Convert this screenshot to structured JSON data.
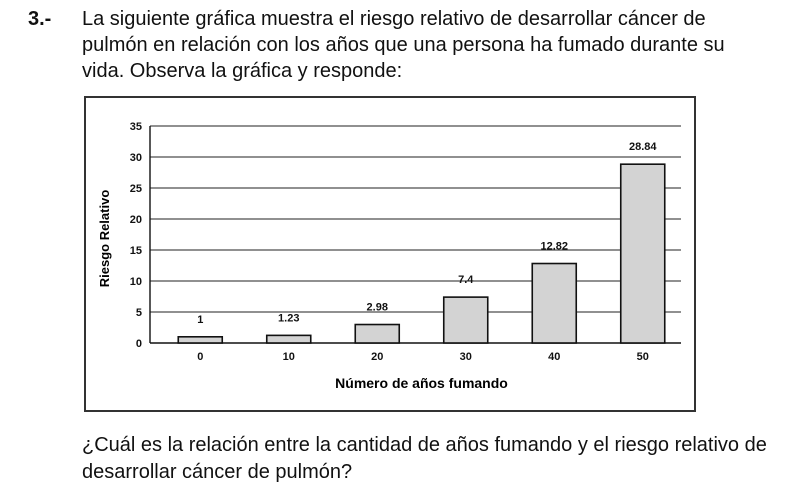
{
  "question_number": "3.-",
  "prompt": "La siguiente gráfica muestra el riesgo relativo de desarrollar cáncer de pulmón en relación con los años que una persona ha fumado durante su vida. Observa la gráfica y responde:",
  "question": "¿Cuál es la relación entre la cantidad de años fumando y el riesgo relativo de desarrollar cáncer de pulmón?",
  "chart_data": {
    "type": "bar",
    "categories": [
      "0",
      "10",
      "20",
      "30",
      "40",
      "50"
    ],
    "values": [
      1,
      1.23,
      2.98,
      7.4,
      12.82,
      28.84
    ],
    "data_labels": [
      "1",
      "1.23",
      "2.98",
      "7.4",
      "12.82",
      "28.84"
    ],
    "xlabel": "Número de años fumando",
    "ylabel": "Riesgo Relativo",
    "ylim": [
      0,
      35
    ],
    "yticks": [
      0,
      5,
      10,
      15,
      20,
      25,
      30,
      35
    ],
    "grid": true,
    "bar_color": "#d3d3d3",
    "bar_edge_color": "#111111"
  }
}
